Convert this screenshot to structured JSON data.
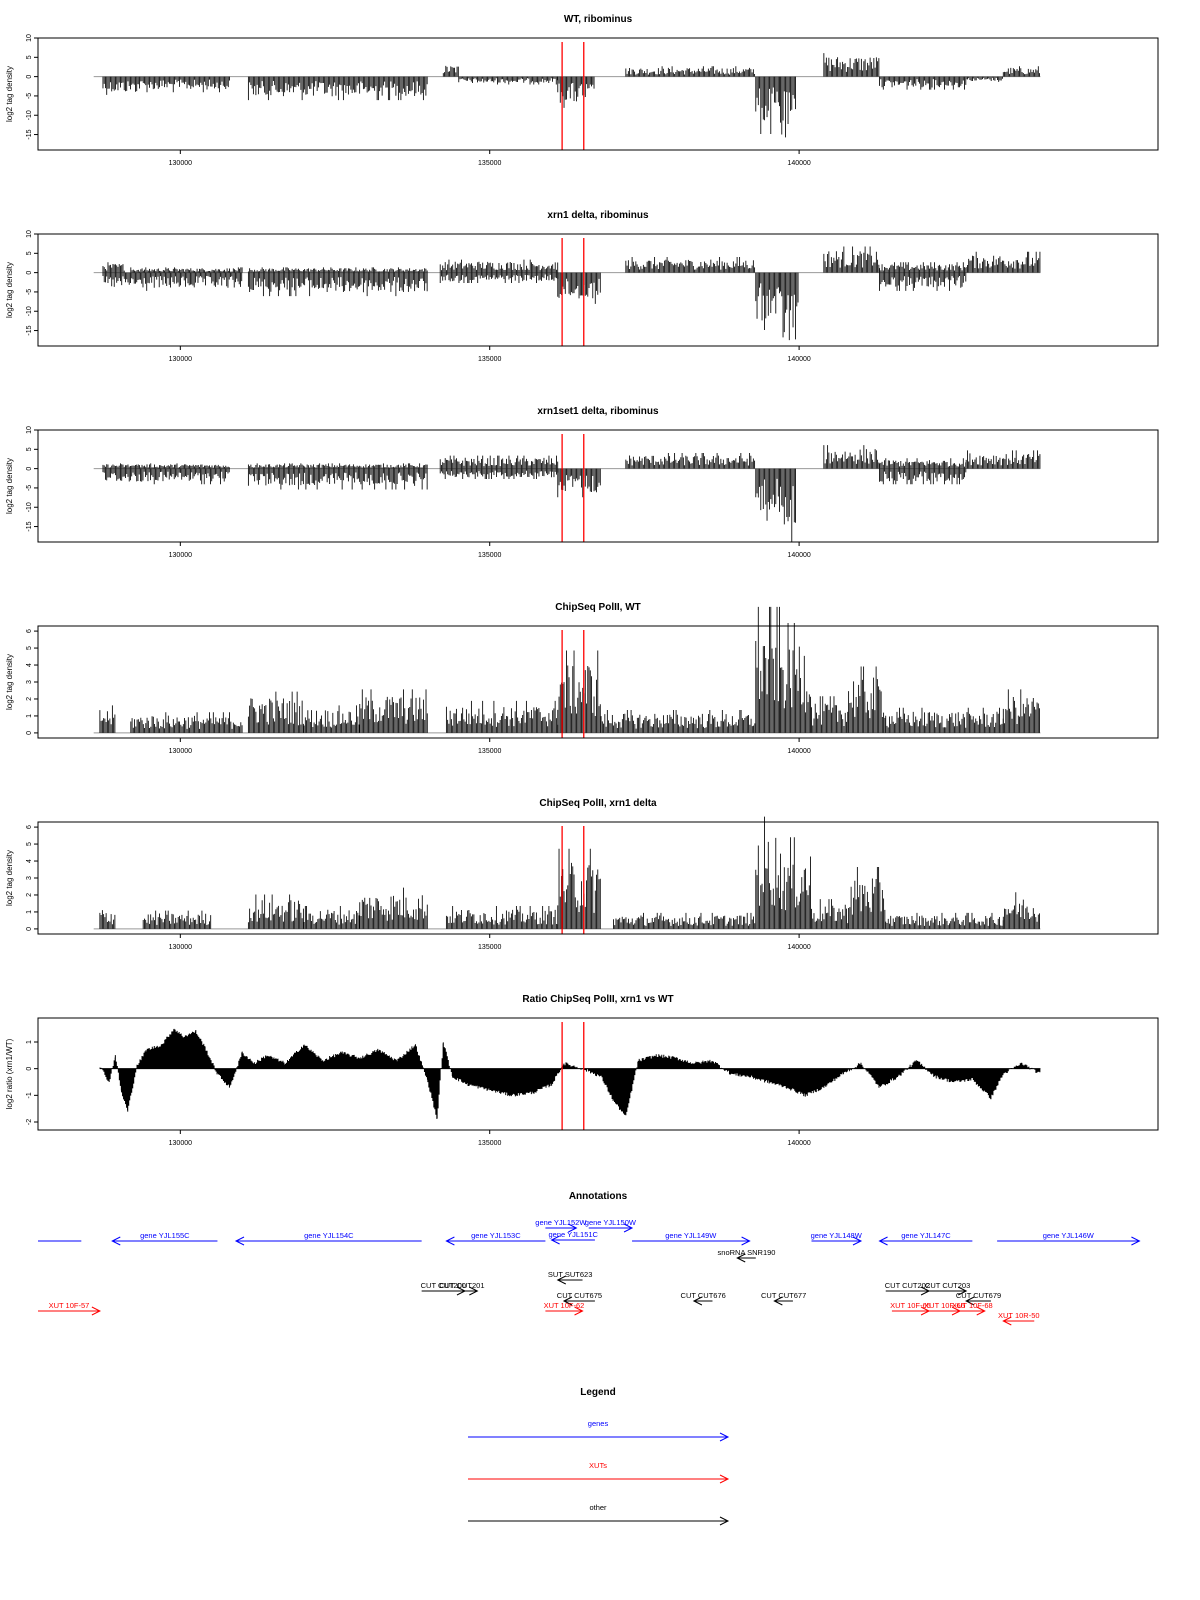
{
  "colors": {
    "axis": "#000000",
    "bars": "#000000",
    "baseline": "#999999",
    "marker": "#ff0000",
    "genes": "#0000ff",
    "xuts": "#ff0000",
    "other": "#000000"
  },
  "chart_data": [
    {
      "type": "bar",
      "title": "WT, ribominus",
      "ylabel": "log2 tag density",
      "xlim": [
        127700,
        145800
      ],
      "ylim": [
        -19,
        10
      ],
      "yticks": [
        10,
        5,
        0,
        -5,
        -10,
        -15
      ],
      "xticks": [
        130000,
        135000,
        140000
      ],
      "grid": false,
      "marker_lines_x": [
        136170,
        136520
      ],
      "segments": [
        {
          "x": [
            128750,
            129300
          ],
          "y": -3.5,
          "dir": "neg"
        },
        {
          "x": [
            129300,
            130800
          ],
          "y": -3.0,
          "dir": "neg"
        },
        {
          "x": [
            131100,
            134000
          ],
          "y": -4.5,
          "dir": "neg"
        },
        {
          "x": [
            134250,
            134500
          ],
          "y": 2.5,
          "dir": "pos"
        },
        {
          "x": [
            134500,
            136100
          ],
          "y": -1.5,
          "dir": "neg"
        },
        {
          "x": [
            136100,
            136700
          ],
          "y": -6.0,
          "dir": "neg"
        },
        {
          "x": [
            137200,
            139300
          ],
          "y": 2.0,
          "dir": "pos"
        },
        {
          "x": [
            139300,
            139700
          ],
          "y": -11.0,
          "dir": "neg"
        },
        {
          "x": [
            139700,
            139950
          ],
          "y": -15.0,
          "dir": "neg"
        },
        {
          "x": [
            140400,
            141300
          ],
          "y": 4.5,
          "dir": "pos"
        },
        {
          "x": [
            141300,
            142700
          ],
          "y": -2.5,
          "dir": "neg"
        },
        {
          "x": [
            142700,
            143300
          ],
          "y": -1.0,
          "dir": "neg"
        },
        {
          "x": [
            143300,
            143900
          ],
          "y": 2.0,
          "dir": "pos"
        }
      ]
    },
    {
      "type": "bar",
      "title": "xrn1 delta, ribominus",
      "ylabel": "log2 tag density",
      "xlim": [
        127700,
        145800
      ],
      "ylim": [
        -19,
        10
      ],
      "yticks": [
        10,
        5,
        0,
        -5,
        -10,
        -15
      ],
      "xticks": [
        130000,
        135000,
        140000
      ],
      "grid": false,
      "marker_lines_x": [
        136170,
        136520
      ],
      "segments": [
        {
          "x": [
            128750,
            129100
          ],
          "y": 2.0,
          "dir": "pos"
        },
        {
          "x": [
            128750,
            131000
          ],
          "y": -3.5,
          "dir": "neg"
        },
        {
          "x": [
            129200,
            131000
          ],
          "y": 1.0,
          "dir": "pos"
        },
        {
          "x": [
            131100,
            134000
          ],
          "y": -4.5,
          "dir": "neg"
        },
        {
          "x": [
            131100,
            134000
          ],
          "y": 1.0,
          "dir": "pos"
        },
        {
          "x": [
            134200,
            136100
          ],
          "y": 2.5,
          "dir": "pos"
        },
        {
          "x": [
            134200,
            136100
          ],
          "y": -2.0,
          "dir": "neg"
        },
        {
          "x": [
            136100,
            136800
          ],
          "y": -6.0,
          "dir": "neg"
        },
        {
          "x": [
            137200,
            139300
          ],
          "y": 3.0,
          "dir": "pos"
        },
        {
          "x": [
            139300,
            139700
          ],
          "y": -11.0,
          "dir": "neg"
        },
        {
          "x": [
            139700,
            140000
          ],
          "y": -16.0,
          "dir": "neg"
        },
        {
          "x": [
            140400,
            141300
          ],
          "y": 5.0,
          "dir": "pos"
        },
        {
          "x": [
            141300,
            142700
          ],
          "y": -3.5,
          "dir": "neg"
        },
        {
          "x": [
            141300,
            142700
          ],
          "y": 2.0,
          "dir": "pos"
        },
        {
          "x": [
            142700,
            143900
          ],
          "y": 4.0,
          "dir": "pos"
        }
      ]
    },
    {
      "type": "bar",
      "title": "xrn1set1 delta, ribominus",
      "ylabel": "log2 tag density",
      "xlim": [
        127700,
        145800
      ],
      "ylim": [
        -19,
        10
      ],
      "yticks": [
        10,
        5,
        0,
        -5,
        -10,
        -15
      ],
      "xticks": [
        130000,
        135000,
        140000
      ],
      "grid": false,
      "marker_lines_x": [
        136170,
        136520
      ],
      "segments": [
        {
          "x": [
            128750,
            129300
          ],
          "y": 1.0,
          "dir": "pos"
        },
        {
          "x": [
            128750,
            130800
          ],
          "y": -3.0,
          "dir": "neg"
        },
        {
          "x": [
            129300,
            130800
          ],
          "y": 1.0,
          "dir": "pos"
        },
        {
          "x": [
            131100,
            134000
          ],
          "y": -4.0,
          "dir": "neg"
        },
        {
          "x": [
            131100,
            134000
          ],
          "y": 1.0,
          "dir": "pos"
        },
        {
          "x": [
            134200,
            136100
          ],
          "y": 2.5,
          "dir": "pos"
        },
        {
          "x": [
            134200,
            136100
          ],
          "y": -2.0,
          "dir": "neg"
        },
        {
          "x": [
            136100,
            136800
          ],
          "y": -5.5,
          "dir": "neg"
        },
        {
          "x": [
            137200,
            139300
          ],
          "y": 3.0,
          "dir": "pos"
        },
        {
          "x": [
            139300,
            139700
          ],
          "y": -10.0,
          "dir": "neg"
        },
        {
          "x": [
            139700,
            139950
          ],
          "y": -14.0,
          "dir": "neg"
        },
        {
          "x": [
            140400,
            141300
          ],
          "y": 4.5,
          "dir": "pos"
        },
        {
          "x": [
            141300,
            142700
          ],
          "y": -3.0,
          "dir": "neg"
        },
        {
          "x": [
            141300,
            142700
          ],
          "y": 2.0,
          "dir": "pos"
        },
        {
          "x": [
            142700,
            143900
          ],
          "y": 3.5,
          "dir": "pos"
        }
      ]
    },
    {
      "type": "bar",
      "title": "ChipSeq PolII, WT",
      "ylabel": "log2 tag density",
      "xlim": [
        127700,
        145800
      ],
      "ylim": [
        -0.3,
        6.3
      ],
      "yticks": [
        0,
        1,
        2,
        3,
        4,
        5,
        6
      ],
      "xticks": [
        130000,
        135000,
        140000
      ],
      "grid": false,
      "marker_lines_x": [
        136170,
        136520
      ],
      "segments": [
        {
          "x": [
            128700,
            128950
          ],
          "y": 1.2,
          "dir": "pos"
        },
        {
          "x": [
            129200,
            131000
          ],
          "y": 0.9,
          "dir": "pos"
        },
        {
          "x": [
            131100,
            132000
          ],
          "y": 1.8,
          "dir": "pos"
        },
        {
          "x": [
            132000,
            132900
          ],
          "y": 1.2,
          "dir": "pos"
        },
        {
          "x": [
            132900,
            134000
          ],
          "y": 1.9,
          "dir": "pos"
        },
        {
          "x": [
            134300,
            136100
          ],
          "y": 1.4,
          "dir": "pos"
        },
        {
          "x": [
            136100,
            136800
          ],
          "y": 3.6,
          "dir": "pos"
        },
        {
          "x": [
            136800,
            139300
          ],
          "y": 1.0,
          "dir": "pos"
        },
        {
          "x": [
            139300,
            139700
          ],
          "y": 5.5,
          "dir": "pos"
        },
        {
          "x": [
            139700,
            140200
          ],
          "y": 4.8,
          "dir": "pos"
        },
        {
          "x": [
            140200,
            140800
          ],
          "y": 1.6,
          "dir": "pos"
        },
        {
          "x": [
            140800,
            141400
          ],
          "y": 2.9,
          "dir": "pos"
        },
        {
          "x": [
            141400,
            143300
          ],
          "y": 1.1,
          "dir": "pos"
        },
        {
          "x": [
            143300,
            143900
          ],
          "y": 1.9,
          "dir": "pos"
        }
      ]
    },
    {
      "type": "bar",
      "title": "ChipSeq PolII, xrn1 delta",
      "ylabel": "log2 tag density",
      "xlim": [
        127700,
        145800
      ],
      "ylim": [
        -0.3,
        6.3
      ],
      "yticks": [
        0,
        1,
        2,
        3,
        4,
        5,
        6
      ],
      "xticks": [
        130000,
        135000,
        140000
      ],
      "grid": false,
      "marker_lines_x": [
        136170,
        136520
      ],
      "segments": [
        {
          "x": [
            128700,
            128950
          ],
          "y": 1.0,
          "dir": "pos"
        },
        {
          "x": [
            129400,
            130500
          ],
          "y": 0.8,
          "dir": "pos"
        },
        {
          "x": [
            131100,
            132000
          ],
          "y": 1.5,
          "dir": "pos"
        },
        {
          "x": [
            132000,
            132900
          ],
          "y": 1.0,
          "dir": "pos"
        },
        {
          "x": [
            132900,
            134000
          ],
          "y": 1.8,
          "dir": "pos"
        },
        {
          "x": [
            134300,
            136100
          ],
          "y": 1.0,
          "dir": "pos"
        },
        {
          "x": [
            136100,
            136800
          ],
          "y": 3.5,
          "dir": "pos"
        },
        {
          "x": [
            137000,
            139300
          ],
          "y": 0.7,
          "dir": "pos"
        },
        {
          "x": [
            139300,
            139700
          ],
          "y": 4.9,
          "dir": "pos"
        },
        {
          "x": [
            139700,
            140200
          ],
          "y": 4.0,
          "dir": "pos"
        },
        {
          "x": [
            140200,
            140800
          ],
          "y": 1.3,
          "dir": "pos"
        },
        {
          "x": [
            140800,
            141400
          ],
          "y": 2.7,
          "dir": "pos"
        },
        {
          "x": [
            141400,
            143300
          ],
          "y": 0.7,
          "dir": "pos"
        },
        {
          "x": [
            143300,
            143900
          ],
          "y": 1.6,
          "dir": "pos"
        }
      ]
    },
    {
      "type": "area",
      "title": "Ratio ChipSeq PolII, xrn1 vs WT",
      "ylabel": "log2 ratio (xrn1/WT)",
      "xlim": [
        127700,
        145800
      ],
      "ylim": [
        -2.3,
        1.9
      ],
      "yticks": [
        -2,
        -1,
        0,
        1
      ],
      "xticks": [
        130000,
        135000,
        140000
      ],
      "grid": false,
      "marker_lines_x": [
        136170,
        136520
      ],
      "x": [
        128700,
        128850,
        128950,
        129050,
        129150,
        129300,
        129450,
        129700,
        129900,
        130050,
        130250,
        130400,
        130600,
        130800,
        131000,
        131200,
        131400,
        131700,
        132000,
        132300,
        132600,
        132900,
        133200,
        133500,
        133800,
        134000,
        134150,
        134250,
        134400,
        134650,
        135000,
        135350,
        135700,
        136000,
        136200,
        136500,
        136800,
        137000,
        137200,
        137400,
        137700,
        138000,
        138300,
        138600,
        138900,
        139200,
        139500,
        139800,
        140100,
        140400,
        140700,
        141000,
        141300,
        141600,
        141900,
        142200,
        142500,
        142800,
        143100,
        143300,
        143600,
        143900
      ],
      "y": [
        0.1,
        -0.5,
        0.5,
        -0.9,
        -1.6,
        0.1,
        0.7,
        0.9,
        1.5,
        1.2,
        1.4,
        0.8,
        -0.2,
        -0.7,
        0.6,
        0.2,
        0.5,
        0.2,
        0.9,
        0.3,
        0.6,
        0.4,
        0.7,
        0.3,
        0.9,
        -0.5,
        -1.9,
        1.0,
        -0.3,
        -0.6,
        -0.8,
        -1.0,
        -0.9,
        -0.6,
        0.2,
        0.0,
        -0.3,
        -1.2,
        -1.8,
        0.3,
        0.5,
        0.4,
        0.2,
        0.3,
        -0.2,
        -0.3,
        -0.5,
        -0.7,
        -1.0,
        -0.7,
        -0.2,
        0.2,
        -0.7,
        -0.3,
        0.3,
        -0.3,
        -0.5,
        -0.4,
        -1.1,
        -0.2,
        0.2,
        -0.2
      ]
    }
  ],
  "annotations": {
    "title": "Annotations",
    "xlim": [
      127700,
      145800
    ],
    "genes": [
      {
        "label": "",
        "x1": 126800,
        "x2": 128400,
        "dir": "none",
        "row": 0
      },
      {
        "label": "gene YJL155C",
        "x1": 128900,
        "x2": 130600,
        "dir": "left",
        "row": 0
      },
      {
        "label": "gene YJL154C",
        "x1": 130900,
        "x2": 133900,
        "dir": "left",
        "row": 0
      },
      {
        "label": "gene YJL153C",
        "x1": 134300,
        "x2": 135900,
        "dir": "left",
        "row": 0
      },
      {
        "label": "gene YJL152W",
        "x1": 135900,
        "x2": 136400,
        "dir": "right",
        "row": -1
      },
      {
        "label": "gene YJL151C",
        "x1": 136000,
        "x2": 136700,
        "dir": "left",
        "row": 1
      },
      {
        "label": "gene YJL150W",
        "x1": 136600,
        "x2": 137300,
        "dir": "right",
        "row": -1
      },
      {
        "label": "gene YJL149W",
        "x1": 137300,
        "x2": 139200,
        "dir": "right",
        "row": 0
      },
      {
        "label": "gene YJL148W",
        "x1": 140200,
        "x2": 141000,
        "dir": "right",
        "row": 0
      },
      {
        "label": "gene YJL147C",
        "x1": 141300,
        "x2": 142800,
        "dir": "left",
        "row": 0
      },
      {
        "label": "gene YJL146W",
        "x1": 143200,
        "x2": 145500,
        "dir": "right",
        "row": 0
      }
    ],
    "other": [
      {
        "label": "snoRNA SNR190",
        "x1": 139000,
        "x2": 139300,
        "dir": "left",
        "row": 0
      },
      {
        "label": "SUT SUT623",
        "x1": 136100,
        "x2": 136500,
        "dir": "left",
        "row": 1
      },
      {
        "label": "CUT CUT200",
        "x1": 133900,
        "x2": 134600,
        "dir": "right",
        "row": 2
      },
      {
        "label": "CUT CUT201",
        "x1": 134300,
        "x2": 134800,
        "dir": "right",
        "row": 2
      },
      {
        "label": "CUT CUT675",
        "x1": 136200,
        "x2": 136700,
        "dir": "left",
        "row": 3
      },
      {
        "label": "CUT CUT676",
        "x1": 138300,
        "x2": 138600,
        "dir": "left",
        "row": 3
      },
      {
        "label": "CUT CUT677",
        "x1": 139600,
        "x2": 139900,
        "dir": "left",
        "row": 3
      },
      {
        "label": "CUT CUT202",
        "x1": 141400,
        "x2": 142100,
        "dir": "right",
        "row": 2
      },
      {
        "label": "CUT CUT203",
        "x1": 142100,
        "x2": 142700,
        "dir": "right",
        "row": 2
      },
      {
        "label": "CUT CUT679",
        "x1": 142700,
        "x2": 143100,
        "dir": "left",
        "row": 3
      }
    ],
    "xuts": [
      {
        "label": "XUT 10F-57",
        "x1": 126800,
        "x2": 128700,
        "dir": "right",
        "row": 0
      },
      {
        "label": "XUT 10F-62",
        "x1": 135900,
        "x2": 136500,
        "dir": "right",
        "row": 0
      },
      {
        "label": "XUT 10F-65",
        "x1": 141500,
        "x2": 142100,
        "dir": "right",
        "row": 0
      },
      {
        "label": "XUT 10F-66",
        "x1": 142100,
        "x2": 142600,
        "dir": "right",
        "row": 0
      },
      {
        "label": "XUT 10F-68",
        "x1": 142600,
        "x2": 143000,
        "dir": "right",
        "row": 0
      },
      {
        "label": "XUT 10R-50",
        "x1": 143300,
        "x2": 143800,
        "dir": "left",
        "row": 1
      }
    ]
  },
  "legend": {
    "title": "Legend",
    "items": [
      {
        "label": "genes",
        "color_key": "genes"
      },
      {
        "label": "XUTs",
        "color_key": "xuts"
      },
      {
        "label": "other",
        "color_key": "other"
      }
    ]
  }
}
